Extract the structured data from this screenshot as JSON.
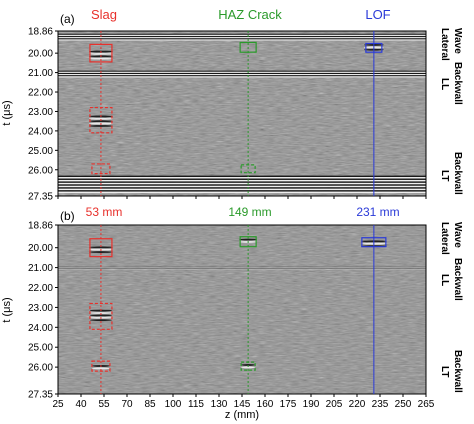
{
  "panels": [
    {
      "tag": "(a)",
      "headers": {
        "slag": "Slag",
        "haz": "HAZ Crack",
        "lof": "LOF"
      },
      "right_labels": {
        "lateral": [
          "Lateral",
          "Wave"
        ],
        "ll": [
          "LL",
          "Backwall"
        ],
        "lt": [
          "LT",
          "Backwall"
        ]
      }
    },
    {
      "tag": "(b)",
      "headers": {
        "slag": "53 mm",
        "haz": "149 mm",
        "lof": "231 mm"
      },
      "right_labels": {
        "lateral": [
          "Lateral",
          "Wave"
        ],
        "ll": [
          "LL",
          "Backwall"
        ],
        "lt": [
          "LT",
          "Backwall"
        ]
      }
    }
  ],
  "y_axis": {
    "label": "t (μs)",
    "ticks": [
      "18.86",
      "20.00",
      "21.00",
      "22.00",
      "23.00",
      "24.00",
      "25.00",
      "26.00",
      "27.35"
    ],
    "min": 18.86,
    "max": 27.35
  },
  "x_axis": {
    "label": "z (mm)",
    "ticks": [
      "25",
      "40",
      "55",
      "70",
      "85",
      "100",
      "115",
      "130",
      "145",
      "160",
      "175",
      "190",
      "205",
      "220",
      "235",
      "250",
      "265"
    ],
    "min": 25,
    "max": 265
  },
  "defects": {
    "slag_z": 53,
    "haz_z": 149,
    "lof_z": 231
  },
  "colors": {
    "slag": "#e8302b",
    "haz": "#2a9a2a",
    "lof": "#2a3ad8",
    "background_gray": "#8c8c8c"
  }
}
